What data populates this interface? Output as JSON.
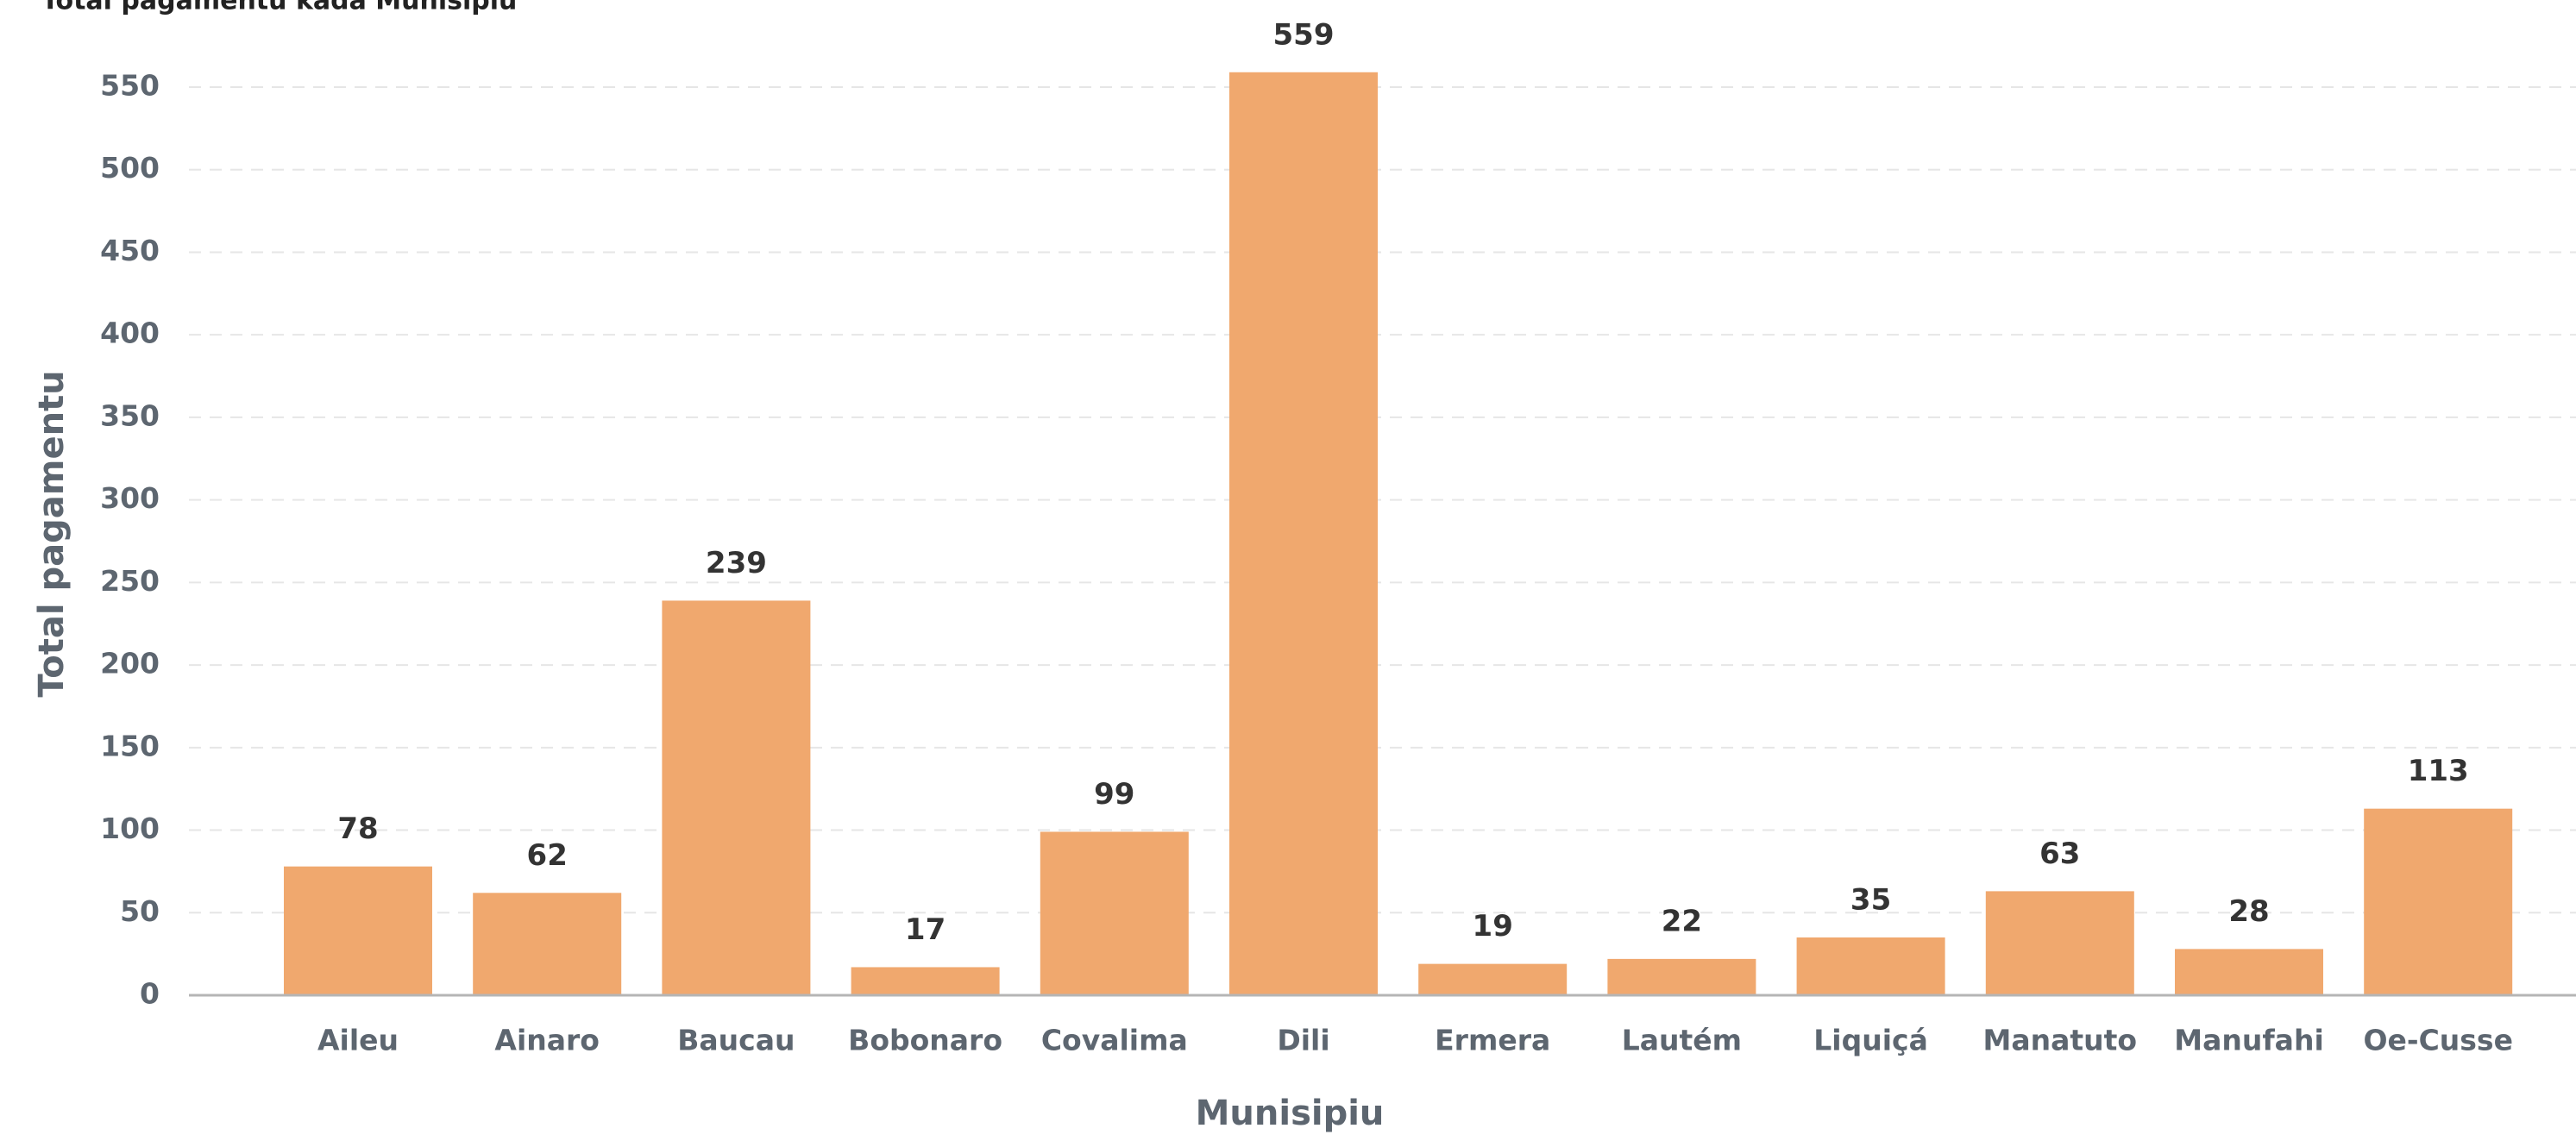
{
  "chart_data": {
    "type": "bar",
    "title": "Total pagamentu kada Munisipiu",
    "x_label": "Munisipiu",
    "y_label": "Total pagamentu",
    "categories": [
      "Aileu",
      "Ainaro",
      "Baucau",
      "Bobonaro",
      "Covalima",
      "Dili",
      "Ermera",
      "Lautém",
      "Liquiçá",
      "Manatuto",
      "Manufahi",
      "Oe-Cusse"
    ],
    "values": [
      78,
      62,
      239,
      17,
      99,
      559,
      19,
      22,
      35,
      63,
      28,
      113
    ],
    "color": "#f0a86e",
    "ylim": [
      0,
      580
    ],
    "yticks": [
      0,
      50,
      100,
      150,
      200,
      250,
      300,
      350,
      400,
      450,
      500,
      550
    ],
    "grid": true
  }
}
